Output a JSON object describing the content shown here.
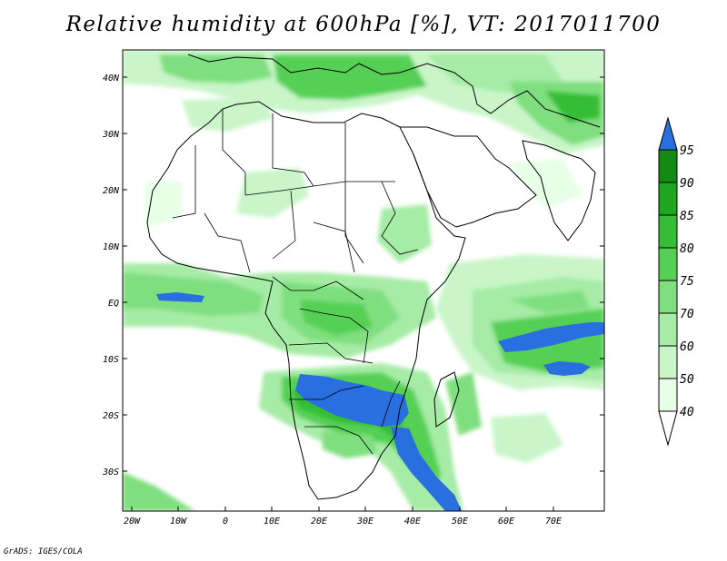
{
  "title": "Relative humidity at 600hPa [%], VT: 2017011700",
  "credit": "GrADS: IGES/COLA",
  "lat_ticks": [
    "40N",
    "30N",
    "20N",
    "10N",
    "EQ",
    "10S",
    "20S",
    "30S"
  ],
  "lon_ticks": [
    "20W",
    "10W",
    "0",
    "10E",
    "20E",
    "30E",
    "40E",
    "50E",
    "60E",
    "70E"
  ],
  "colorbar": {
    "levels": [
      "40",
      "50",
      "60",
      "70",
      "75",
      "80",
      "85",
      "90",
      "95"
    ],
    "colors": [
      "#ffffff",
      "#e6ffe6",
      "#c9f5c9",
      "#a6eba6",
      "#7fdf7f",
      "#55d055",
      "#35bd35",
      "#1fa51f",
      "#138a13",
      "#2a6fdf"
    ]
  },
  "map_extent": {
    "lon": [
      -22,
      80
    ],
    "lat": [
      -37,
      45
    ]
  }
}
